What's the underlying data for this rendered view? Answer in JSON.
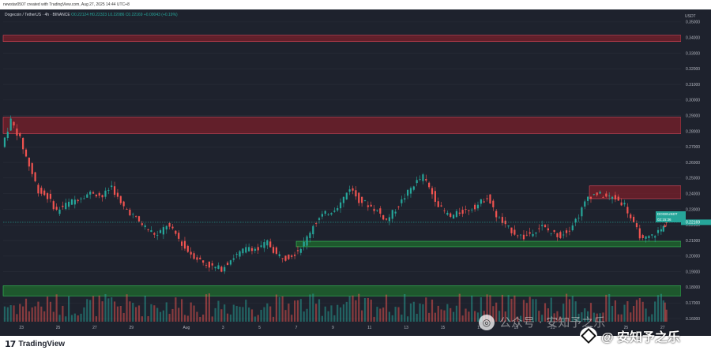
{
  "header": {
    "created_by": "newstar0507 created with TradingView.com, Aug 27, 2025 14:44 UTC+8"
  },
  "symbol_line": {
    "name": "Dogecoin / TetherUS · 4h · BINANCE",
    "open": "O0.22124",
    "high": "H0.22323",
    "low": "L0.22086",
    "close": "C0.22169",
    "change": "+0.00043 (+0.19%)"
  },
  "price_tag": {
    "symbol": "DOGEUSDT",
    "price": "0.22169",
    "countdown": "02:15:36"
  },
  "branding": {
    "mark": "17",
    "name": "TradingView"
  },
  "watermark": {
    "faded": "公众号 · 安知予之乐",
    "main": "@ 安知予之乐"
  },
  "colors": {
    "background": "#1e222d",
    "up": "#26a69a",
    "down": "#ef5350",
    "resistance_zone": "#7a1f2a",
    "support_zone": "#1f6b2e"
  },
  "chart_data": {
    "type": "candlestick",
    "symbol": "DOGEUSDT",
    "interval": "4h",
    "yaxis": {
      "unit": "USDT",
      "ticks": [
        0.16,
        0.17,
        0.18,
        0.19,
        0.2,
        0.21,
        0.22,
        0.23,
        0.24,
        0.25,
        0.26,
        0.27,
        0.28,
        0.29,
        0.3,
        0.31,
        0.32,
        0.33,
        0.34,
        0.35
      ],
      "ylim": [
        0.158,
        0.356
      ]
    },
    "xaxis": {
      "ticks": [
        "23",
        "25",
        "27",
        "29",
        "Aug",
        "3",
        "5",
        "7",
        "9",
        "11",
        "13",
        "15",
        "17",
        "19",
        "21",
        "23",
        "25",
        "27"
      ],
      "range": [
        "2025-07-22",
        "2025-08-28"
      ]
    },
    "zones": [
      {
        "kind": "resistance",
        "from": 0.3375,
        "to": 0.3415,
        "x_start": "2025-07-22",
        "x_end": "2025-08-28"
      },
      {
        "kind": "resistance",
        "from": 0.2785,
        "to": 0.289,
        "x_start": "2025-07-22",
        "x_end": "2025-08-28"
      },
      {
        "kind": "resistance",
        "from": 0.2368,
        "to": 0.245,
        "x_start": "2025-08-23",
        "x_end": "2025-08-28"
      },
      {
        "kind": "support",
        "from": 0.206,
        "to": 0.2095,
        "x_start": "2025-08-07",
        "x_end": "2025-08-28"
      },
      {
        "kind": "support",
        "from": 0.1745,
        "to": 0.181,
        "x_start": "2025-07-22",
        "x_end": "2025-08-28"
      }
    ],
    "price_path": [
      [
        "2025-07-22",
        0.27
      ],
      [
        "2025-07-22T12",
        0.287
      ],
      [
        "2025-07-23",
        0.275
      ],
      [
        "2025-07-23T12",
        0.258
      ],
      [
        "2025-07-24",
        0.242
      ],
      [
        "2025-07-24T12",
        0.238
      ],
      [
        "2025-07-25",
        0.229
      ],
      [
        "2025-07-25T12",
        0.233
      ],
      [
        "2025-07-26",
        0.236
      ],
      [
        "2025-07-26T12",
        0.239
      ],
      [
        "2025-07-27",
        0.241
      ],
      [
        "2025-07-27T12",
        0.238
      ],
      [
        "2025-07-28",
        0.245
      ],
      [
        "2025-07-28T12",
        0.233
      ],
      [
        "2025-07-29",
        0.228
      ],
      [
        "2025-07-29T12",
        0.222
      ],
      [
        "2025-07-30",
        0.217
      ],
      [
        "2025-07-30T12",
        0.213
      ],
      [
        "2025-07-31",
        0.22
      ],
      [
        "2025-07-31T12",
        0.214
      ],
      [
        "2025-08-01",
        0.205
      ],
      [
        "2025-08-01T12",
        0.2
      ],
      [
        "2025-08-02",
        0.196
      ],
      [
        "2025-08-02T12",
        0.193
      ],
      [
        "2025-08-03",
        0.192
      ],
      [
        "2025-08-03T12",
        0.198
      ],
      [
        "2025-08-04",
        0.202
      ],
      [
        "2025-08-04T12",
        0.206
      ],
      [
        "2025-08-05",
        0.204
      ],
      [
        "2025-08-05T12",
        0.209
      ],
      [
        "2025-08-06",
        0.201
      ],
      [
        "2025-08-06T12",
        0.199
      ],
      [
        "2025-08-07",
        0.202
      ],
      [
        "2025-08-07T12",
        0.208
      ],
      [
        "2025-08-08",
        0.22
      ],
      [
        "2025-08-08T12",
        0.226
      ],
      [
        "2025-08-09",
        0.229
      ],
      [
        "2025-08-09T12",
        0.234
      ],
      [
        "2025-08-10",
        0.244
      ],
      [
        "2025-08-10T12",
        0.236
      ],
      [
        "2025-08-11",
        0.233
      ],
      [
        "2025-08-11T12",
        0.229
      ],
      [
        "2025-08-12",
        0.223
      ],
      [
        "2025-08-12T12",
        0.23
      ],
      [
        "2025-08-13",
        0.238
      ],
      [
        "2025-08-13T12",
        0.246
      ],
      [
        "2025-08-14",
        0.251
      ],
      [
        "2025-08-14T12",
        0.24
      ],
      [
        "2025-08-15",
        0.23
      ],
      [
        "2025-08-15T12",
        0.225
      ],
      [
        "2025-08-16",
        0.228
      ],
      [
        "2025-08-16T12",
        0.23
      ],
      [
        "2025-08-17",
        0.233
      ],
      [
        "2025-08-17T12",
        0.238
      ],
      [
        "2025-08-18",
        0.226
      ],
      [
        "2025-08-18T12",
        0.219
      ],
      [
        "2025-08-19",
        0.215
      ],
      [
        "2025-08-19T12",
        0.212
      ],
      [
        "2025-08-20",
        0.216
      ],
      [
        "2025-08-20T12",
        0.219
      ],
      [
        "2025-08-21",
        0.215
      ],
      [
        "2025-08-21T12",
        0.213
      ],
      [
        "2025-08-22",
        0.218
      ],
      [
        "2025-08-22T12",
        0.226
      ],
      [
        "2025-08-23",
        0.238
      ],
      [
        "2025-08-23T12",
        0.24
      ],
      [
        "2025-08-24",
        0.238
      ],
      [
        "2025-08-24T12",
        0.237
      ],
      [
        "2025-08-25",
        0.233
      ],
      [
        "2025-08-25T12",
        0.22
      ],
      [
        "2025-08-26",
        0.21
      ],
      [
        "2025-08-26T12",
        0.213
      ],
      [
        "2025-08-27",
        0.217
      ],
      [
        "2025-08-27T06",
        0.2217
      ]
    ],
    "last_price": 0.22169
  }
}
